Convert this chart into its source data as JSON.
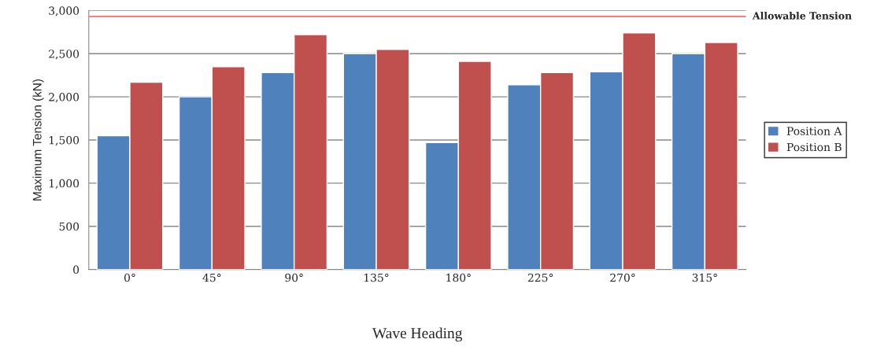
{
  "chart_data": {
    "type": "bar",
    "categories": [
      "0°",
      "45°",
      "90°",
      "135°",
      "180°",
      "225°",
      "270°",
      "315°"
    ],
    "series": [
      {
        "name": "Position A",
        "color": "#4f81bd",
        "values": [
          1550,
          2000,
          2280,
          2500,
          1470,
          2140,
          2290,
          2500
        ]
      },
      {
        "name": "Position B",
        "color": "#c0504d",
        "values": [
          2170,
          2350,
          2720,
          2550,
          2410,
          2280,
          2740,
          2630
        ]
      }
    ],
    "xlabel": "Wave Heading",
    "ylabel": "Maximum Tension (kN)",
    "ylim": [
      0,
      3000
    ],
    "yticks": [
      {
        "value": 0,
        "label": "0"
      },
      {
        "value": 500,
        "label": "500"
      },
      {
        "value": 1000,
        "label": "1,000"
      },
      {
        "value": 1500,
        "label": "1,500"
      },
      {
        "value": 2000,
        "label": "2,000"
      },
      {
        "value": 2500,
        "label": "2,500"
      },
      {
        "value": 3000,
        "label": "3,000"
      }
    ],
    "ref_lines": [
      {
        "axis": "y",
        "value": 2930,
        "label": "Allowable Tension",
        "color": "#ff7c80"
      }
    ],
    "grid": "y",
    "legend": "right"
  }
}
